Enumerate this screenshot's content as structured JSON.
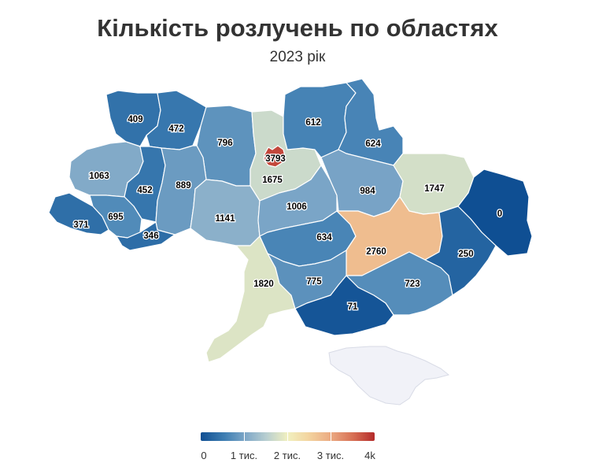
{
  "title": "Кількість розлучень по областях",
  "subtitle": "2023 рік",
  "colors": {
    "low": "#0f4f93",
    "mid": "#f1f0bf",
    "high": "#b42a2a",
    "no_data": "#f1f2f8"
  },
  "legend": {
    "labels": [
      "0",
      "1 тис.",
      "2 тис.",
      "3 тис.",
      "4k"
    ],
    "min": 0,
    "max": 4000
  },
  "regions": [
    {
      "id": "volyn",
      "value": "409"
    },
    {
      "id": "rivne",
      "value": "472"
    },
    {
      "id": "zhytomyr",
      "value": "796"
    },
    {
      "id": "kyiv-city",
      "value": "3793"
    },
    {
      "id": "kyiv-oblast",
      "value": "1675"
    },
    {
      "id": "chernihiv",
      "value": "612"
    },
    {
      "id": "sumy",
      "value": "624"
    },
    {
      "id": "lviv",
      "value": "1063"
    },
    {
      "id": "ternopil",
      "value": "452"
    },
    {
      "id": "khmelnytskyi",
      "value": "889"
    },
    {
      "id": "zakarpattia",
      "value": "371"
    },
    {
      "id": "ivano-frankivsk",
      "value": "695"
    },
    {
      "id": "chernivtsi",
      "value": "346"
    },
    {
      "id": "vinnytsia",
      "value": "1141"
    },
    {
      "id": "cherkasy",
      "value": "1006"
    },
    {
      "id": "poltava",
      "value": "984"
    },
    {
      "id": "kharkiv",
      "value": "1747"
    },
    {
      "id": "luhansk",
      "value": "0"
    },
    {
      "id": "kirovohrad",
      "value": "634"
    },
    {
      "id": "dnipropetrovsk",
      "value": "2760"
    },
    {
      "id": "donetsk",
      "value": "250"
    },
    {
      "id": "odesa",
      "value": "1820"
    },
    {
      "id": "mykolaiv",
      "value": "775"
    },
    {
      "id": "zaporizhzhia",
      "value": "723"
    },
    {
      "id": "kherson",
      "value": "71"
    }
  ]
}
